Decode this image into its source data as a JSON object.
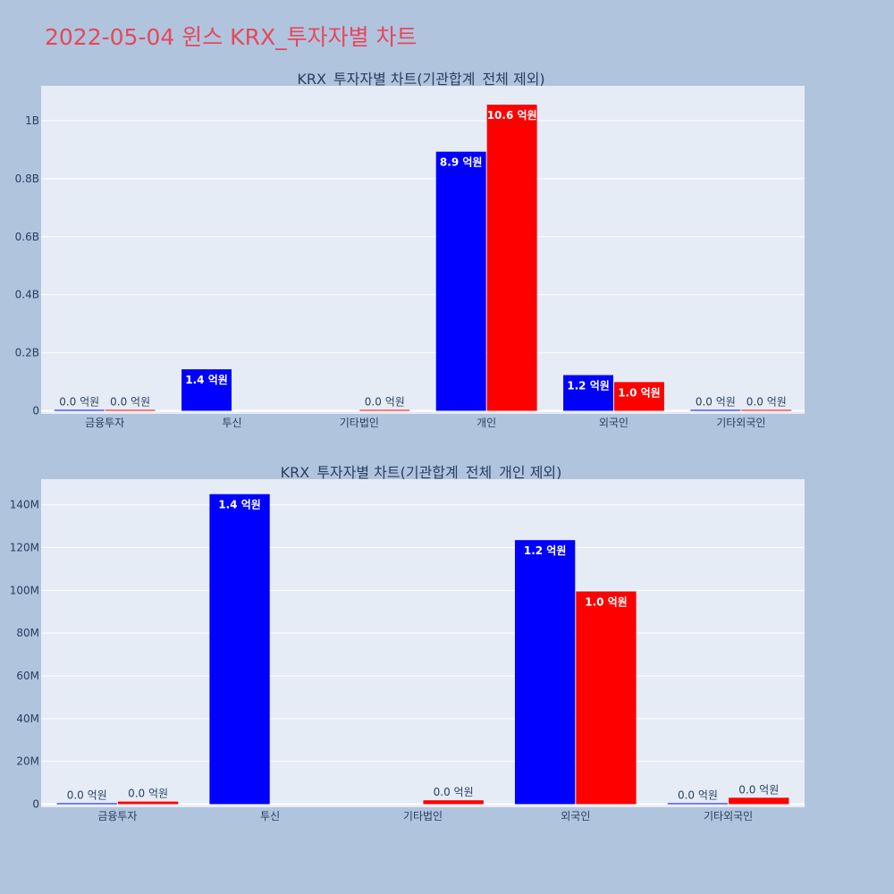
{
  "title": "2022-05-04 윈스 KRX_투자자별 차트",
  "colors": {
    "background": "#b0c4de",
    "plot_bg": "#e5ecf6",
    "title": "#e8475a",
    "buy": "#0000ff",
    "sell": "#ff0000",
    "text": "#2a3f5f",
    "grid": "#ffffff"
  },
  "chart_data": [
    {
      "type": "bar",
      "title": "KRX_투자자별 차트(기관합계_전체 제외)",
      "categories": [
        "금융투자",
        "투신",
        "기타법인",
        "개인",
        "외국인",
        "기타외국인"
      ],
      "ylim": [
        0,
        1120000000
      ],
      "yticks": [
        0,
        200000000,
        400000000,
        600000000,
        800000000,
        1000000000
      ],
      "ytick_labels": [
        "0",
        "0.2B",
        "0.4B",
        "0.6B",
        "0.8B",
        "1B"
      ],
      "grid": true,
      "series": [
        {
          "values": [
            1000000,
            143000000,
            null,
            893000000,
            123000000,
            1000000
          ],
          "labels": [
            "0.0 억원",
            "1.4 억원",
            "",
            "8.9 억원",
            "1.2 억원",
            "0.0 억원"
          ]
        },
        {
          "values": [
            2000000,
            null,
            2000000,
            1055000000,
            99000000,
            3000000
          ],
          "labels": [
            "0.0 억원",
            "",
            "0.0 억원",
            "10.6 억원",
            "1.0 억원",
            "0.0 억원"
          ]
        }
      ]
    },
    {
      "type": "bar",
      "title": "KRX_투자자별 차트(기관합계_전체_개인 제외)",
      "categories": [
        "금융투자",
        "투신",
        "기타법인",
        "외국인",
        "기타외국인"
      ],
      "ylim": [
        0,
        152000000
      ],
      "yticks": [
        0,
        20000000,
        40000000,
        60000000,
        80000000,
        100000000,
        120000000,
        140000000
      ],
      "ytick_labels": [
        "0",
        "20M",
        "40M",
        "60M",
        "80M",
        "100M",
        "120M",
        "140M"
      ],
      "grid": true,
      "series": [
        {
          "values": [
            300000,
            145000000,
            null,
            123500000,
            300000
          ],
          "labels": [
            "0.0 억원",
            "1.4 억원",
            "",
            "1.2 억원",
            "0.0 억원"
          ]
        },
        {
          "values": [
            1200000,
            null,
            1800000,
            99500000,
            3000000
          ],
          "labels": [
            "0.0 억원",
            "",
            "0.0 억원",
            "1.0 억원",
            "0.0 억원"
          ]
        }
      ]
    }
  ]
}
